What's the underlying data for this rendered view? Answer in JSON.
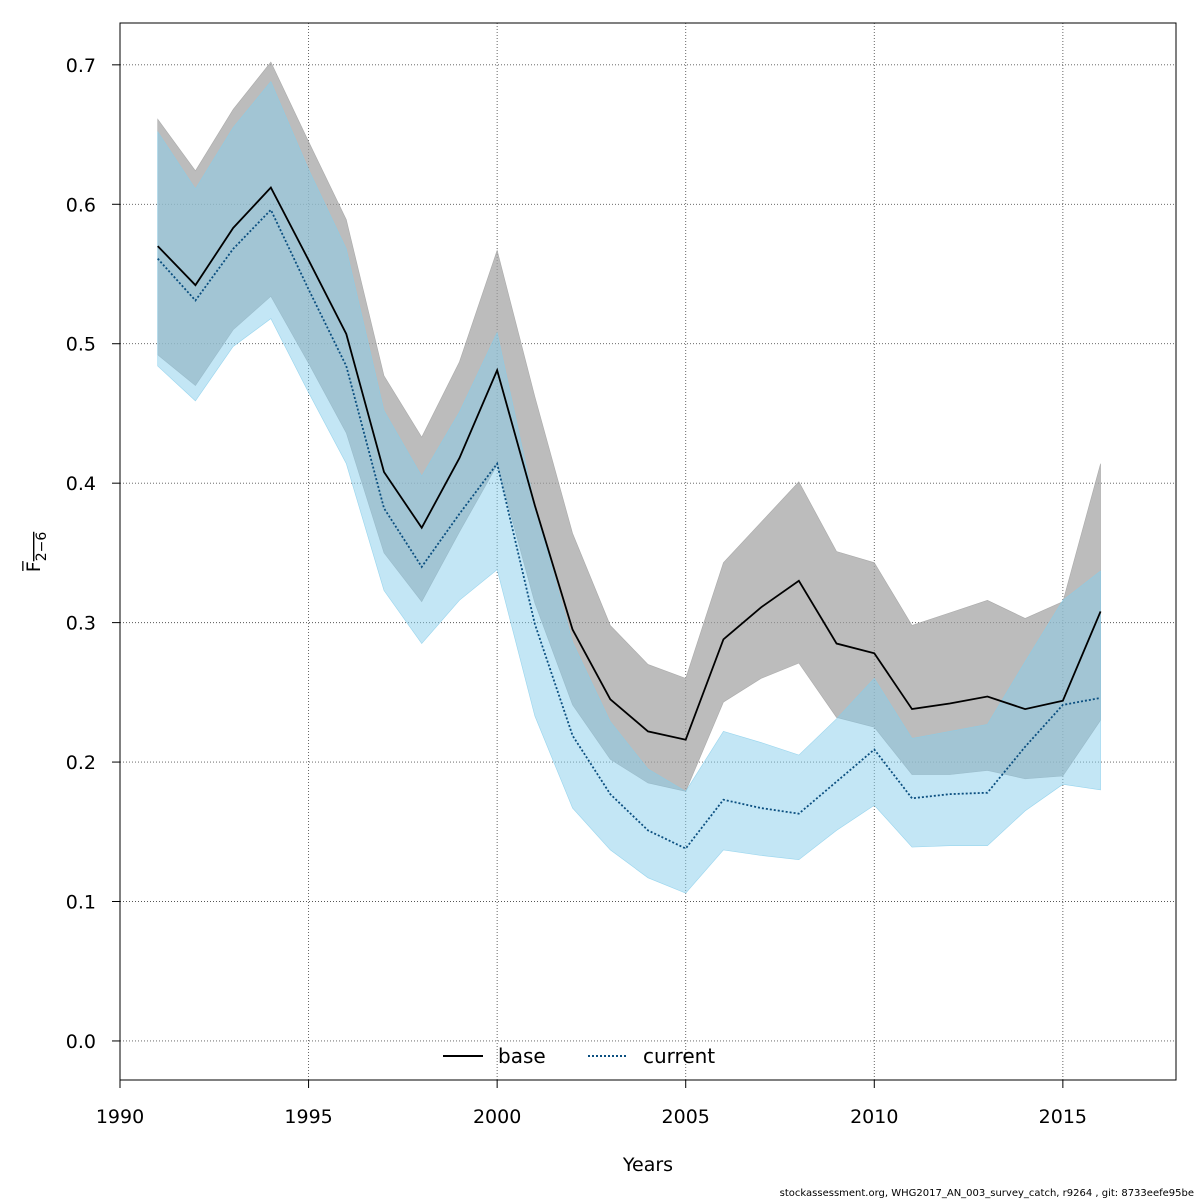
{
  "chart_data": {
    "type": "line",
    "xlabel": "Years",
    "ylabel": "F̅",
    "ylabel_sub": "2−6",
    "xlim": [
      1990,
      2018
    ],
    "ylim": [
      -0.028,
      0.73
    ],
    "xticks": [
      1990,
      1995,
      2000,
      2005,
      2010,
      2015
    ],
    "yticks": [
      0.0,
      0.1,
      0.2,
      0.3,
      0.4,
      0.5,
      0.6,
      0.7
    ],
    "ytick_labels": [
      "0.0",
      "0.1",
      "0.2",
      "0.3",
      "0.4",
      "0.5",
      "0.6",
      "0.7"
    ],
    "grid": true,
    "legend_position": "bottom-center",
    "x": [
      1991,
      1992,
      1993,
      1994,
      1995,
      1996,
      1997,
      1998,
      1999,
      2000,
      2001,
      2002,
      2003,
      2004,
      2005,
      2006,
      2007,
      2008,
      2009,
      2010,
      2011,
      2012,
      2013,
      2014,
      2015,
      2016
    ],
    "series": [
      {
        "name": "base",
        "line_style": "solid",
        "line_color": "#000000",
        "band_color": "#a0a0a0",
        "values": [
          0.57,
          0.542,
          0.583,
          0.612,
          0.56,
          0.507,
          0.408,
          0.368,
          0.418,
          0.481,
          0.384,
          0.295,
          0.245,
          0.222,
          0.216,
          0.288,
          0.311,
          0.33,
          0.285,
          0.278,
          0.238,
          0.242,
          0.247,
          0.238,
          0.244,
          0.308
        ],
        "lower": [
          0.492,
          0.47,
          0.51,
          0.534,
          0.486,
          0.436,
          0.35,
          0.315,
          0.365,
          0.413,
          0.314,
          0.241,
          0.202,
          0.185,
          0.179,
          0.243,
          0.26,
          0.271,
          0.232,
          0.225,
          0.191,
          0.191,
          0.194,
          0.188,
          0.19,
          0.23
        ],
        "upper": [
          0.661,
          0.624,
          0.668,
          0.702,
          0.645,
          0.589,
          0.477,
          0.433,
          0.487,
          0.567,
          0.462,
          0.364,
          0.298,
          0.27,
          0.26,
          0.343,
          0.372,
          0.401,
          0.351,
          0.343,
          0.298,
          0.307,
          0.316,
          0.303,
          0.315,
          0.414
        ]
      },
      {
        "name": "current",
        "line_style": "dotted",
        "line_color": "#0b4f80",
        "band_color": "#87ceeb",
        "values": [
          0.561,
          0.531,
          0.568,
          0.596,
          0.539,
          0.484,
          0.382,
          0.34,
          0.378,
          0.414,
          0.299,
          0.219,
          0.177,
          0.151,
          0.138,
          0.173,
          0.167,
          0.163,
          0.186,
          0.209,
          0.174,
          0.177,
          0.178,
          0.211,
          0.241,
          0.246
        ],
        "lower": [
          0.484,
          0.459,
          0.498,
          0.518,
          0.465,
          0.414,
          0.323,
          0.285,
          0.316,
          0.338,
          0.233,
          0.167,
          0.137,
          0.117,
          0.106,
          0.137,
          0.133,
          0.13,
          0.151,
          0.169,
          0.139,
          0.14,
          0.14,
          0.165,
          0.184,
          0.18
        ],
        "upper": [
          0.652,
          0.611,
          0.655,
          0.688,
          0.625,
          0.568,
          0.452,
          0.405,
          0.451,
          0.508,
          0.384,
          0.286,
          0.229,
          0.195,
          0.179,
          0.222,
          0.214,
          0.205,
          0.231,
          0.26,
          0.217,
          0.222,
          0.227,
          0.272,
          0.316,
          0.337
        ]
      }
    ]
  },
  "footer": "stockassessment.org, WHG2017_AN_003_survey_catch, r9264 , git: 8733eefe95be"
}
